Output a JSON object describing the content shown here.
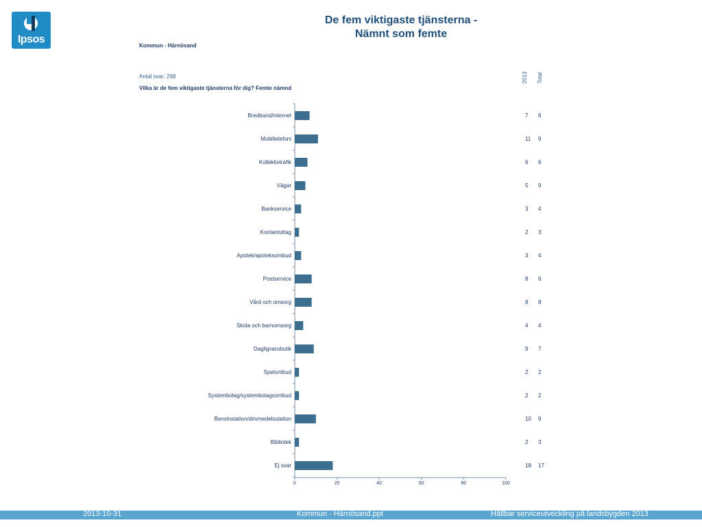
{
  "logo": {
    "text": "Ipsos",
    "color": "#1f8cc6"
  },
  "title_line1": "De fem viktigaste tjänsterna -",
  "title_line2": "Nämnt som femte",
  "subtitle": "Kommun - Härnösand",
  "antal": "Antal svar: 298",
  "question": "Vilka är de fem viktigaste tjänsterna för dig? Femte nämnd",
  "columns": {
    "col1": "2013",
    "col2": "Total"
  },
  "chart_data": {
    "type": "bar",
    "orientation": "horizontal",
    "categories": [
      "Bredband/internet",
      "Mobiltelefoni",
      "Kollektivtrafik",
      "Vägar",
      "Bankservice",
      "Kontantuttag",
      "Apotek/apoteksombud",
      "Postservice",
      "Vård och omsorg",
      "Skola och barnomsorg",
      "Dagligvarubutik",
      "Spelombud",
      "Systembolag/systembolagsombud",
      "Bensinstation/drivmedelsstation",
      "Bibliotek",
      "Ej svar"
    ],
    "values": [
      7,
      11,
      6,
      5,
      3,
      2,
      3,
      8,
      8,
      4,
      9,
      2,
      2,
      10,
      2,
      18
    ],
    "table_2013": [
      "7",
      "11",
      "6",
      "5",
      "3",
      "2",
      "3",
      "8",
      "8",
      "4",
      "9",
      "2",
      "2",
      "10",
      "2",
      "18"
    ],
    "table_total": [
      "6",
      "9",
      "6",
      "9",
      "4",
      "3",
      "4",
      "6",
      "8",
      "4",
      "7",
      "2",
      "2",
      "9",
      "3",
      "17"
    ],
    "xticks": [
      "0",
      "20",
      "40",
      "60",
      "80",
      "100"
    ],
    "xlim": [
      0,
      100
    ],
    "bar_color": "#3b6e8f",
    "axis_color": "#7a8fa3",
    "label_color": "#1f3a66"
  },
  "footer": {
    "date": "2013-10-31",
    "file": "Kommun - Härnösand.ppt",
    "project": "Hållbar serviceutveckling på landsbygden 2013",
    "bar_color": "#5aa5cf"
  }
}
